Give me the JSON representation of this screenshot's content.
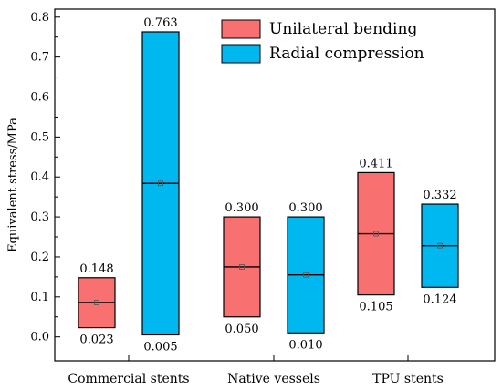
{
  "chart_data": {
    "type": "box",
    "ylabel": "Equivalent stress/MPa",
    "xlabel": "",
    "ylim": [
      -0.06,
      0.82
    ],
    "yticks": [
      "0.0",
      "0.1",
      "0.2",
      "0.3",
      "0.4",
      "0.5",
      "0.6",
      "0.7",
      "0.8"
    ],
    "categories": [
      "Commercial stents",
      "Native vessels",
      "TPU stents"
    ],
    "legend_position": "top-right",
    "series": [
      {
        "name": "Unilateral bending",
        "color": "#f87070",
        "boxes": [
          {
            "min": 0.023,
            "max": 0.148,
            "median": 0.086,
            "mean": 0.086,
            "min_label": "0.023",
            "max_label": "0.148"
          },
          {
            "min": 0.05,
            "max": 0.3,
            "median": 0.175,
            "mean": 0.175,
            "min_label": "0.050",
            "max_label": "0.300"
          },
          {
            "min": 0.105,
            "max": 0.411,
            "median": 0.258,
            "mean": 0.258,
            "min_label": "0.105",
            "max_label": "0.411"
          }
        ]
      },
      {
        "name": "Radial compression",
        "color": "#00b8f0",
        "boxes": [
          {
            "min": 0.005,
            "max": 0.763,
            "median": 0.384,
            "mean": 0.384,
            "min_label": "0.005",
            "max_label": "0.763"
          },
          {
            "min": 0.01,
            "max": 0.3,
            "median": 0.155,
            "mean": 0.155,
            "min_label": "0.010",
            "max_label": "0.300"
          },
          {
            "min": 0.124,
            "max": 0.332,
            "median": 0.228,
            "mean": 0.228,
            "min_label": "0.124",
            "max_label": "0.332"
          }
        ]
      }
    ]
  }
}
